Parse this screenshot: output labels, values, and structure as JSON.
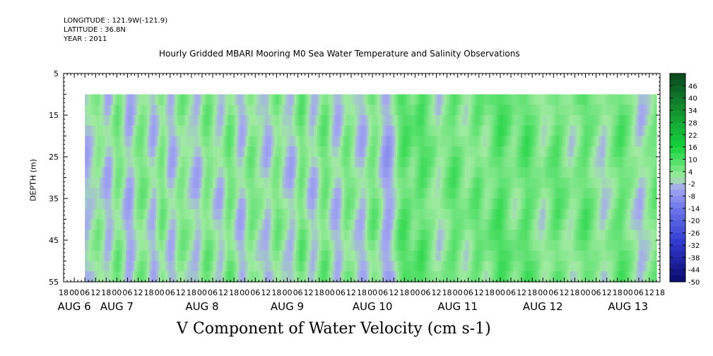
{
  "header": {
    "longitude": "LONGITUDE : 121.9W(-121.9)",
    "latitude": "LATITUDE : 36.8N",
    "year": "YEAR : 2011"
  },
  "chart_data": {
    "type": "heatmap",
    "title": "Hourly Gridded MBARI Mooring M0 Sea Water Temperature and Salinity Observations",
    "xlabel": "V Component of Water Velocity (cm s-1)",
    "ylabel": "DEPTH (m)",
    "y_axis": {
      "range": [
        5,
        55
      ],
      "inverted": true,
      "ticks": [
        "5",
        "15",
        "25",
        "35",
        "45",
        "55"
      ]
    },
    "x_axis": {
      "range_hours": [
        -6,
        330
      ],
      "start_hour": 6,
      "end_hour": 328,
      "hour_ticks": [
        "18",
        "00",
        "06",
        "12",
        "18",
        "00",
        "06",
        "12",
        "18",
        "00",
        "06",
        "12",
        "18",
        "00",
        "06",
        "12",
        "18",
        "00",
        "06",
        "12",
        "18",
        "00",
        "06",
        "12",
        "18",
        "00",
        "06",
        "12",
        "18",
        "00",
        "06",
        "12",
        "18",
        "00",
        "06",
        "12",
        "18",
        "00",
        "06",
        "12",
        "18",
        "00",
        "06",
        "12",
        "18",
        "00",
        "06",
        "12",
        "18",
        "00",
        "06",
        "12",
        "18",
        "00",
        "06",
        "12",
        "18"
      ],
      "day_labels": [
        {
          "text": "AUG  6",
          "hour": 0
        },
        {
          "text": "AUG  7",
          "hour": 24
        },
        {
          "text": "AUG  8",
          "hour": 72
        },
        {
          "text": "AUG  9",
          "hour": 120
        },
        {
          "text": "AUG 10",
          "hour": 168
        },
        {
          "text": "AUG 11",
          "hour": 216
        },
        {
          "text": "AUG 12",
          "hour": 264
        },
        {
          "text": "AUG 13",
          "hour": 312
        }
      ]
    },
    "data_depth_range": [
      10,
      55
    ],
    "colorbar": {
      "levels": [
        "46",
        "40",
        "34",
        "28",
        "22",
        "16",
        "10",
        "4",
        "-2",
        "-8",
        "-14",
        "-20",
        "-26",
        "-32",
        "-38",
        "-44",
        "-50"
      ],
      "range": [
        -50,
        52
      ]
    },
    "v_profile_hourly": [
      -3,
      -3,
      -2,
      -1,
      0,
      1,
      2,
      3,
      2,
      1,
      0,
      -2,
      -3,
      -3,
      -2,
      0,
      2,
      4,
      5,
      4,
      3,
      1,
      -1,
      -3,
      -4,
      -4,
      -3,
      -1,
      1,
      3,
      4,
      5,
      5,
      4,
      3,
      1,
      -1,
      -2,
      -3,
      -2,
      0,
      2,
      4,
      5,
      4,
      2,
      0,
      -2,
      -3,
      -3,
      -2,
      0,
      2,
      3,
      4,
      4,
      3,
      2,
      1,
      0,
      -1,
      -2,
      -3,
      -3,
      -2,
      0,
      2,
      4,
      5,
      5,
      4,
      3,
      1,
      0,
      -1,
      -2,
      -2,
      -1,
      1,
      3,
      5,
      6,
      5,
      4,
      2,
      0,
      -2,
      -3,
      -3,
      -2,
      0,
      2,
      4,
      5,
      5,
      4,
      3,
      2,
      1,
      0,
      -1,
      -2,
      -3,
      -2,
      -1,
      1,
      3,
      4,
      5,
      4,
      3,
      1,
      0,
      -1,
      -2,
      -3,
      -3,
      -2,
      0,
      2,
      4,
      6,
      6,
      5,
      3,
      1,
      -1,
      -2,
      -3,
      -2,
      -1,
      1,
      3,
      5,
      6,
      6,
      5,
      3,
      1,
      -1,
      -2,
      -3,
      -3,
      -2,
      0,
      2,
      4,
      5,
      5,
      4,
      3,
      2,
      0,
      -1,
      -2,
      -3,
      -3,
      -2,
      0,
      2,
      4,
      5,
      6,
      5,
      4,
      2,
      0,
      -2,
      -4,
      -5,
      -6,
      -5,
      -4,
      -2,
      0,
      2,
      5,
      7,
      8,
      9,
      9,
      8,
      7,
      6,
      5,
      5,
      6,
      7,
      8,
      9,
      9,
      8,
      7,
      6,
      5,
      4,
      3,
      2,
      1,
      0,
      1,
      2,
      3,
      4,
      5,
      6,
      7,
      8,
      8,
      7,
      6,
      5,
      4,
      3,
      2,
      2,
      3,
      4,
      5,
      6,
      7,
      7,
      6,
      5,
      4,
      3,
      3,
      4,
      5,
      6,
      7,
      8,
      9,
      10,
      10,
      9,
      8,
      7,
      6,
      5,
      4,
      3,
      3,
      4,
      5,
      6,
      7,
      8,
      9,
      9,
      8,
      7,
      6,
      5,
      4,
      3,
      2,
      1,
      1,
      2,
      3,
      4,
      5,
      6,
      7,
      8,
      8,
      7,
      6,
      5,
      4,
      3,
      2,
      1,
      1,
      2,
      3,
      4,
      5,
      6,
      7,
      8,
      8,
      7,
      6,
      5,
      4,
      3,
      2,
      1,
      0,
      -1,
      -1,
      0,
      1,
      2,
      3,
      4,
      5,
      6,
      7,
      8,
      8,
      7,
      6,
      5,
      4,
      3,
      2,
      1,
      0,
      -1,
      -2,
      -2,
      -1,
      0,
      1,
      2,
      3,
      4,
      5,
      6,
      7,
      8,
      8,
      7,
      6,
      5,
      4,
      3,
      2,
      1,
      0,
      -1,
      -2,
      -3,
      -3,
      -2
    ]
  }
}
